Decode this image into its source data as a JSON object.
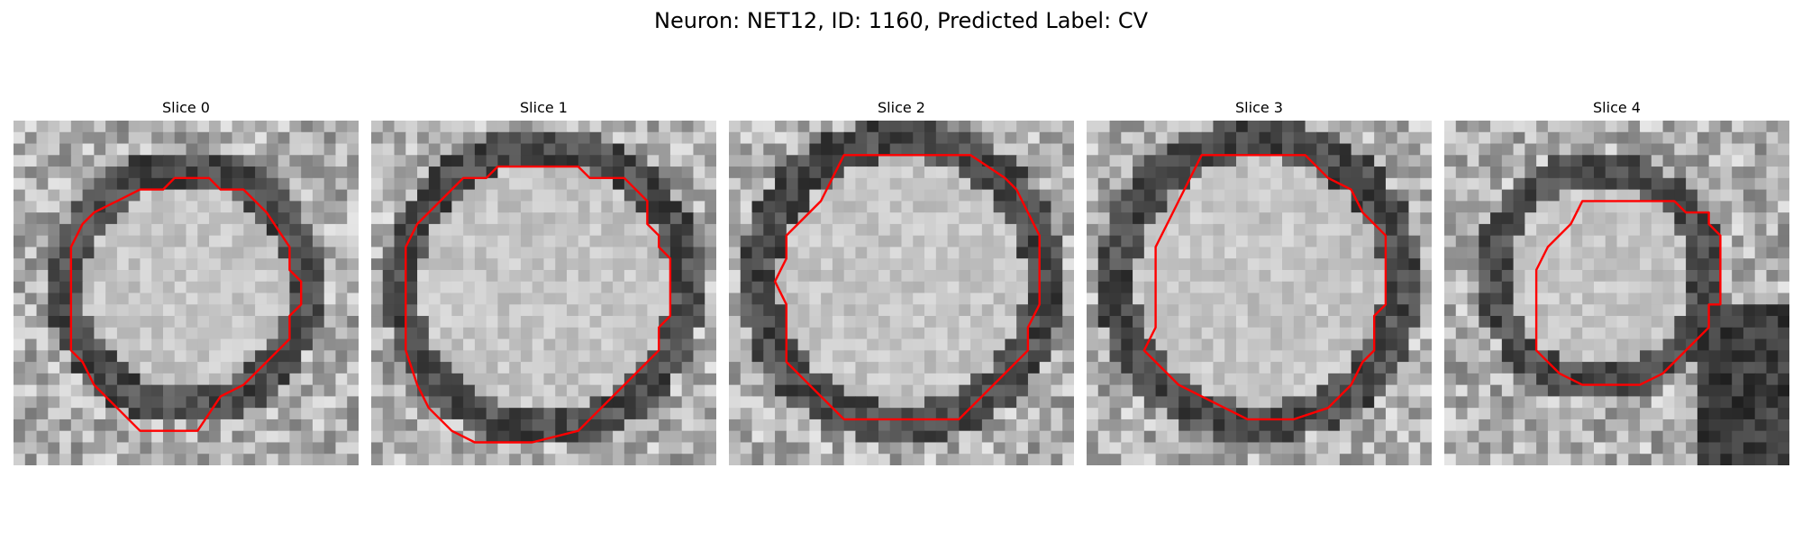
{
  "figure": {
    "title": "Neuron: NET12, ID: 1160, Predicted Label: CV"
  },
  "colors": {
    "background": "#ffffff",
    "contour": "#ff0000",
    "grayscale_dark": "#1a1a1a",
    "grayscale_light": "#f2f2f2"
  },
  "panels": [
    {
      "title": "Slice 0"
    },
    {
      "title": "Slice 1"
    },
    {
      "title": "Slice 2"
    },
    {
      "title": "Slice 3"
    },
    {
      "title": "Slice 4"
    }
  ]
}
